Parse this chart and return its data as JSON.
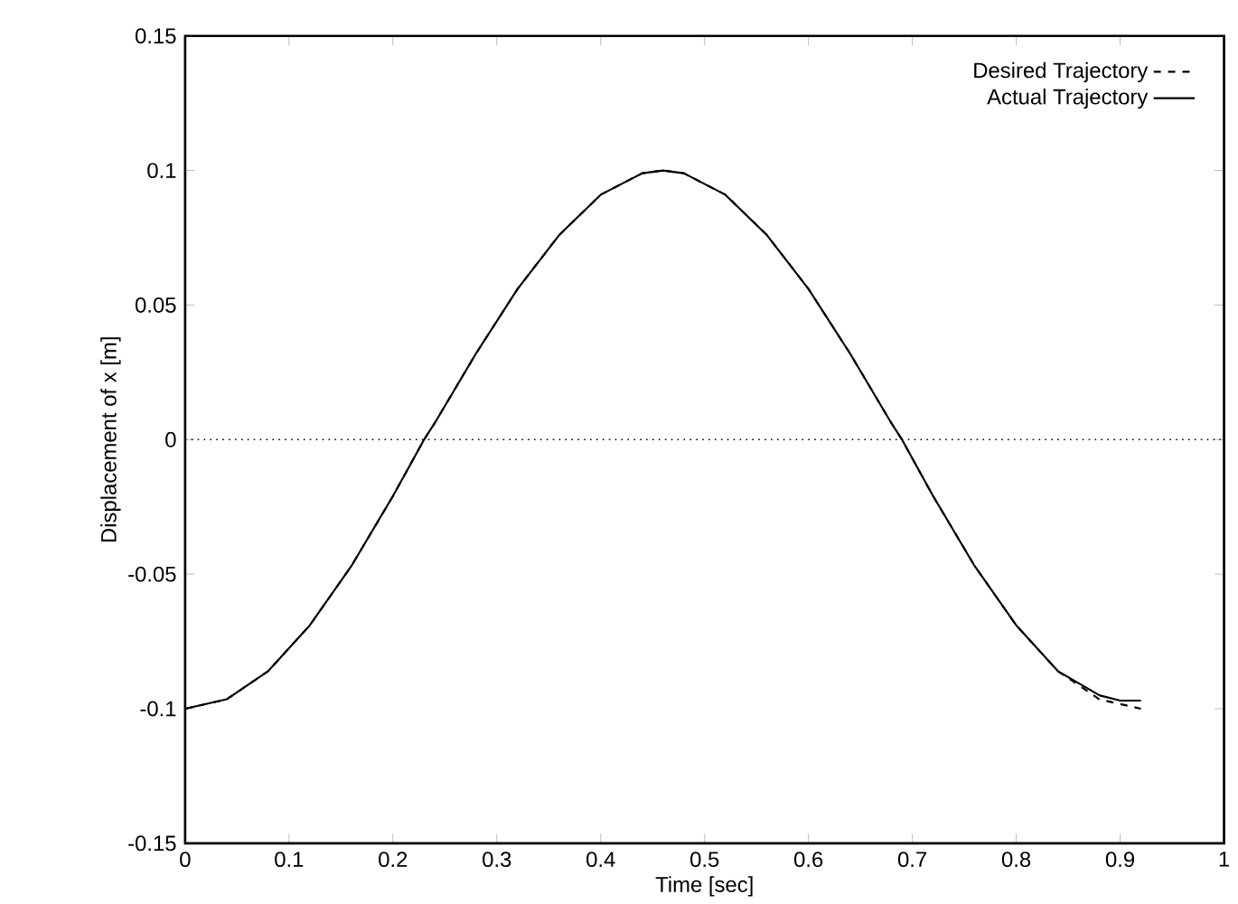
{
  "chart_data": {
    "type": "line",
    "xlabel": "Time [sec]",
    "ylabel": "Displacement of x [m]",
    "xlim": [
      0,
      1
    ],
    "xticks": [
      0,
      0.1,
      0.2,
      0.3,
      0.4,
      0.5,
      0.6,
      0.7,
      0.8,
      0.9,
      1
    ],
    "ylim": [
      -0.15,
      0.15
    ],
    "yticks": [
      -0.15,
      -0.1,
      -0.05,
      0,
      0.05,
      0.1,
      0.15
    ],
    "grid": false,
    "legend": "top right",
    "ref_lines": [
      {
        "axis": "y",
        "value": 0,
        "color": "#000000",
        "line_style": "dotted"
      }
    ],
    "series": [
      {
        "name": "Desired Trajectory",
        "color": "#000000",
        "line_style": "dashed",
        "x": [
          0,
          0.04,
          0.08,
          0.12,
          0.16,
          0.2,
          0.23,
          0.24,
          0.28,
          0.32,
          0.36,
          0.4,
          0.44,
          0.46,
          0.48,
          0.52,
          0.56,
          0.6,
          0.64,
          0.68,
          0.69,
          0.72,
          0.76,
          0.8,
          0.84,
          0.88,
          0.92
        ],
        "values": [
          -0.1,
          -0.0965,
          -0.086,
          -0.069,
          -0.047,
          -0.021,
          0,
          0.006,
          0.032,
          0.056,
          0.076,
          0.091,
          0.099,
          0.1,
          0.099,
          0.091,
          0.076,
          0.056,
          0.032,
          0.006,
          0,
          -0.021,
          -0.047,
          -0.069,
          -0.086,
          -0.0965,
          -0.1
        ]
      },
      {
        "name": "Actual Trajectory",
        "color": "#000000",
        "line_style": "solid",
        "x": [
          0,
          0.04,
          0.08,
          0.12,
          0.16,
          0.2,
          0.23,
          0.24,
          0.28,
          0.32,
          0.36,
          0.4,
          0.44,
          0.46,
          0.48,
          0.52,
          0.56,
          0.6,
          0.64,
          0.68,
          0.69,
          0.72,
          0.76,
          0.8,
          0.84,
          0.88,
          0.9,
          0.92
        ],
        "values": [
          -0.1,
          -0.0965,
          -0.086,
          -0.069,
          -0.047,
          -0.021,
          0,
          0.006,
          0.032,
          0.056,
          0.076,
          0.091,
          0.099,
          0.1,
          0.099,
          0.091,
          0.076,
          0.056,
          0.032,
          0.006,
          0,
          -0.021,
          -0.047,
          -0.069,
          -0.086,
          -0.095,
          -0.097,
          -0.097
        ]
      }
    ]
  }
}
